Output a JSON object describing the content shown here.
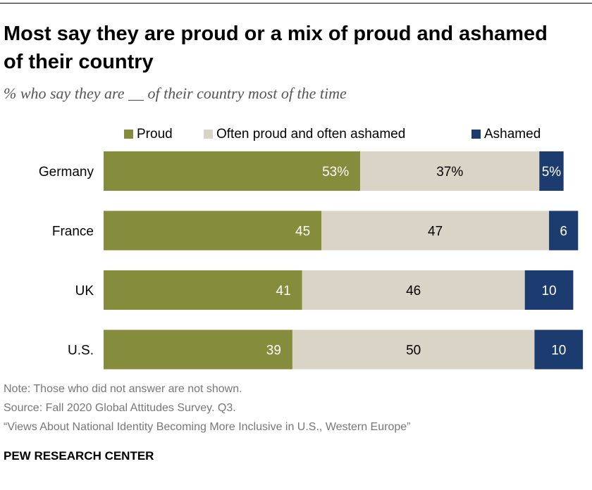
{
  "header": {
    "title": "Most say they are proud or a mix of proud and ashamed of their country",
    "subtitle": "% who say they are __ of their country most of the time"
  },
  "chart_data": {
    "type": "bar",
    "orientation": "horizontal",
    "stacked": true,
    "categories": [
      "Germany",
      "France",
      "UK",
      "U.S."
    ],
    "series": [
      {
        "name": "Proud",
        "color": "#858c3b",
        "values": [
          53,
          45,
          41,
          39
        ],
        "labels": [
          "53%",
          "45",
          "41",
          "39"
        ],
        "label_color": "#ffffff"
      },
      {
        "name": "Often proud and often ashamed",
        "color": "#d9d4c6",
        "values": [
          37,
          47,
          46,
          50
        ],
        "labels": [
          "37%",
          "47",
          "46",
          "50"
        ],
        "label_color": "#000000"
      },
      {
        "name": "Ashamed",
        "color": "#1c3b6e",
        "values": [
          5,
          6,
          10,
          10
        ],
        "labels": [
          "5%",
          "6",
          "10",
          "10"
        ],
        "label_color": "#ffffff"
      }
    ],
    "xlim": [
      0,
      100
    ],
    "legend": "top",
    "grid": false,
    "xlabel": "",
    "ylabel": ""
  },
  "footer": {
    "note": "Note: Those who did not answer are not shown.",
    "source": "Source: Fall 2020 Global Attitudes Survey. Q3.",
    "report": "“Views About National Identity Becoming More Inclusive in U.S., Western Europe”",
    "brand": "PEW RESEARCH CENTER"
  }
}
